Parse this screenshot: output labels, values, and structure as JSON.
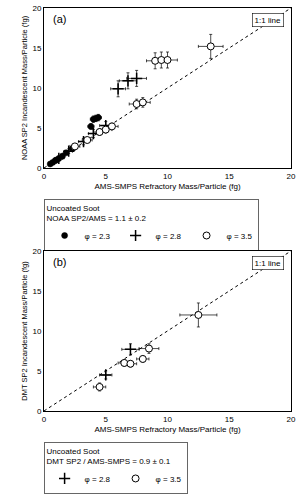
{
  "chart_data": [
    {
      "type": "scatter",
      "title": "(a)",
      "x_label": "AMS-SMPS Refractory Mass/Particle (fg)",
      "y_label": "NOAA SP2 Incandescent Mass/Particle (fg)",
      "xlim": [
        0,
        20
      ],
      "ylim": [
        0,
        20
      ],
      "xticks": [
        0,
        5,
        10,
        15,
        20
      ],
      "yticks": [
        0,
        5,
        10,
        15,
        20
      ],
      "grid": false,
      "legend": "bottom",
      "legend_title": "Uncoated Soot\nNOAA SP2/AMS = 1.1 ± 0.2",
      "annotations": [
        {
          "text": "1:1 line"
        }
      ],
      "series": [
        {
          "type": "line",
          "line_style": "dotted",
          "color": "black",
          "x": [
            0,
            20
          ],
          "values": [
            0,
            20
          ]
        },
        {
          "name": "φ = 2.3",
          "marker": "filled circle",
          "color": "black",
          "x": [
            0.5,
            0.7,
            0.9,
            1.0,
            1.2,
            1.5,
            1.8,
            2.3,
            3.8,
            4.0,
            4.2,
            4.4
          ],
          "values": [
            0.5,
            0.7,
            0.9,
            1.0,
            1.2,
            1.5,
            1.9,
            2.4,
            5.2,
            6.1,
            6.2,
            6.3
          ],
          "xerr": [
            0.05,
            0.07,
            0.09,
            0.1,
            0.12,
            0.15,
            0.18,
            0.23,
            0.25,
            0.25,
            0.25,
            0.25
          ],
          "yerr": [
            0.05,
            0.07,
            0.09,
            0.1,
            0.12,
            0.15,
            0.19,
            0.24,
            0.35,
            0.4,
            0.4,
            0.4
          ]
        },
        {
          "name": "φ = 2.8",
          "marker": "plus",
          "color": "black",
          "x": [
            1.2,
            2.0,
            3.2,
            4.0,
            5.0,
            6.0,
            6.8,
            7.5
          ],
          "values": [
            1.2,
            2.1,
            3.3,
            4.3,
            5.3,
            9.9,
            10.9,
            11.2
          ],
          "xerr": [
            0.3,
            0.3,
            0.4,
            0.4,
            0.5,
            0.6,
            0.7,
            0.8
          ],
          "yerr": [
            0.3,
            0.3,
            0.4,
            0.5,
            0.5,
            1.0,
            1.0,
            1.0
          ]
        },
        {
          "name": "φ = 3.5",
          "marker": "open circle",
          "color": "black",
          "x": [
            2.5,
            3.5,
            4.5,
            5.0,
            5.5,
            7.5,
            8.0,
            9.0,
            9.5,
            10.0,
            13.5
          ],
          "values": [
            2.7,
            3.5,
            4.5,
            4.8,
            5.2,
            8.0,
            8.2,
            13.4,
            13.5,
            13.5,
            15.2
          ],
          "xerr": [
            0.4,
            0.4,
            0.5,
            0.5,
            0.5,
            0.6,
            0.6,
            0.7,
            0.7,
            0.8,
            1.0
          ],
          "yerr": [
            0.3,
            0.3,
            0.4,
            0.4,
            0.4,
            0.6,
            0.6,
            1.0,
            1.0,
            1.0,
            1.5
          ]
        }
      ]
    },
    {
      "type": "scatter",
      "title": "(b)",
      "x_label": "AMS-SMPS Refractory Mass/Particle (fg)",
      "y_label": "DMT SP2 Incandescent Mass/Particle (fg)",
      "xlim": [
        0,
        20
      ],
      "ylim": [
        0,
        20
      ],
      "xticks": [
        0,
        5,
        10,
        15,
        20
      ],
      "yticks": [
        0,
        5,
        10,
        15,
        20
      ],
      "grid": false,
      "legend": "bottom",
      "legend_title": "Uncoated Soot\nDMT SP2 / AMS-SMPS = 0.9 ± 0.1",
      "annotations": [
        {
          "text": "1:1 line"
        }
      ],
      "series": [
        {
          "type": "line",
          "line_style": "dotted",
          "color": "black",
          "x": [
            0,
            20
          ],
          "values": [
            0,
            20
          ]
        },
        {
          "name": "φ = 2.8",
          "marker": "plus",
          "color": "black",
          "x": [
            5.0,
            7.0
          ],
          "values": [
            4.5,
            7.7
          ],
          "xerr": [
            0.5,
            0.7
          ],
          "yerr": [
            0.5,
            0.7
          ]
        },
        {
          "name": "φ = 3.5",
          "marker": "open circle",
          "color": "black",
          "x": [
            4.5,
            6.5,
            7.0,
            8.0,
            8.5,
            12.5
          ],
          "values": [
            3.0,
            6.0,
            5.9,
            6.5,
            7.8,
            12.0
          ],
          "xerr": [
            0.5,
            0.5,
            0.5,
            0.5,
            0.8,
            1.5
          ],
          "yerr": [
            0.5,
            0.4,
            0.4,
            0.4,
            0.6,
            1.5
          ]
        }
      ]
    }
  ]
}
